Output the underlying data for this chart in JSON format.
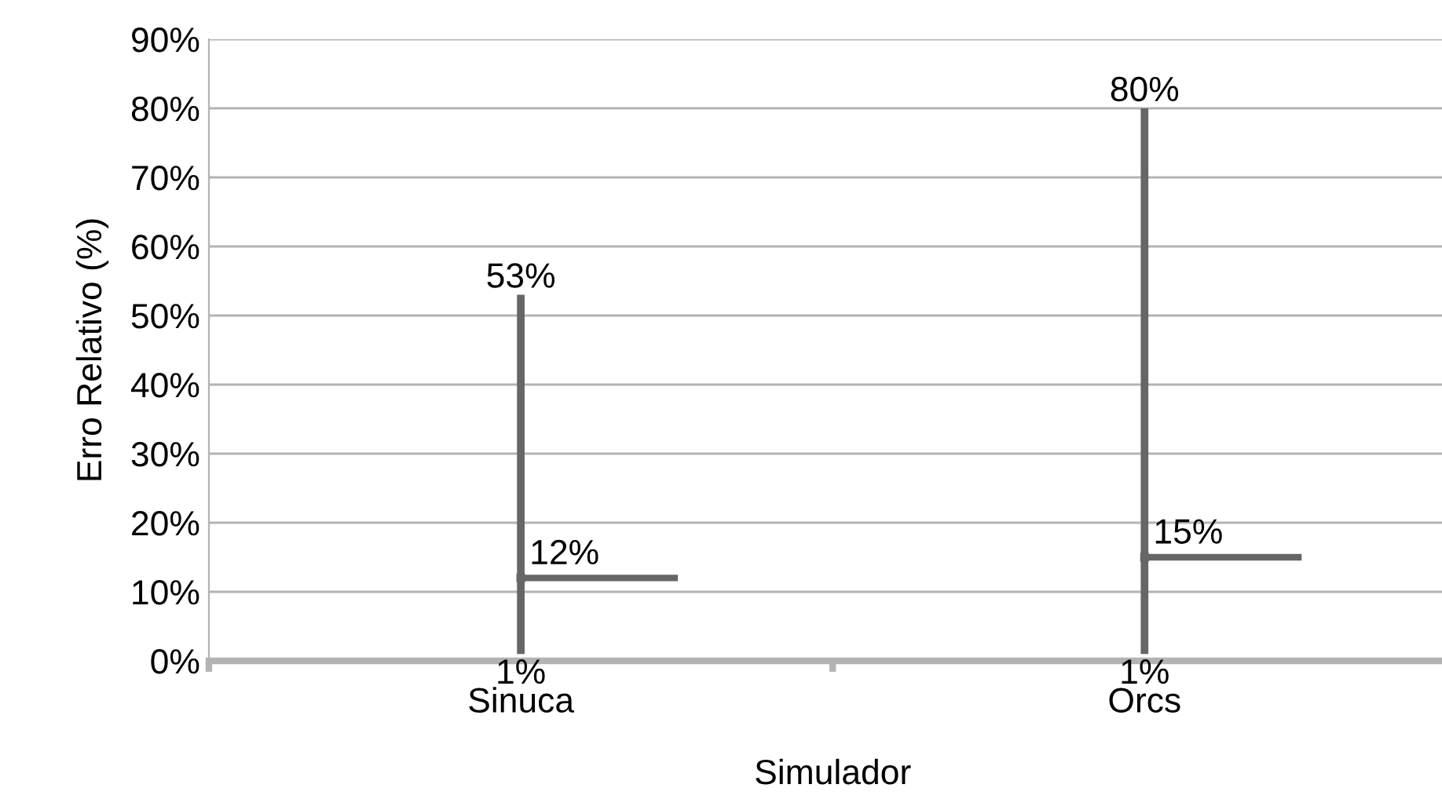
{
  "chart_data": {
    "type": "scatter",
    "xlabel": "Simulador",
    "ylabel": "Erro Relativo (%)",
    "categories": [
      "Sinuca",
      "Orcs"
    ],
    "values": [
      12,
      15
    ],
    "errors": [
      [
        1,
        53
      ],
      [
        1,
        80
      ]
    ],
    "color": "#666666",
    "ylim": [
      0,
      90
    ],
    "yticks": [
      {
        "value": 0,
        "label": "0%"
      },
      {
        "value": 10,
        "label": "10%"
      },
      {
        "value": 20,
        "label": "20%"
      },
      {
        "value": 30,
        "label": "30%"
      },
      {
        "value": 40,
        "label": "40%"
      },
      {
        "value": 50,
        "label": "50%"
      },
      {
        "value": 60,
        "label": "60%"
      },
      {
        "value": 70,
        "label": "70%"
      },
      {
        "value": 80,
        "label": "80%"
      },
      {
        "value": 90,
        "label": "90%"
      }
    ],
    "grid": "y",
    "annotations": [
      {
        "text": "53%",
        "x": "Sinuca",
        "y": 53
      },
      {
        "text": "12%",
        "x": "Sinuca",
        "y": 12
      },
      {
        "text": "1%",
        "x": "Sinuca",
        "y": 1
      },
      {
        "text": "80%",
        "x": "Orcs",
        "y": 80
      },
      {
        "text": "15%",
        "x": "Orcs",
        "y": 15
      },
      {
        "text": "1%",
        "x": "Orcs",
        "y": 1
      }
    ]
  }
}
